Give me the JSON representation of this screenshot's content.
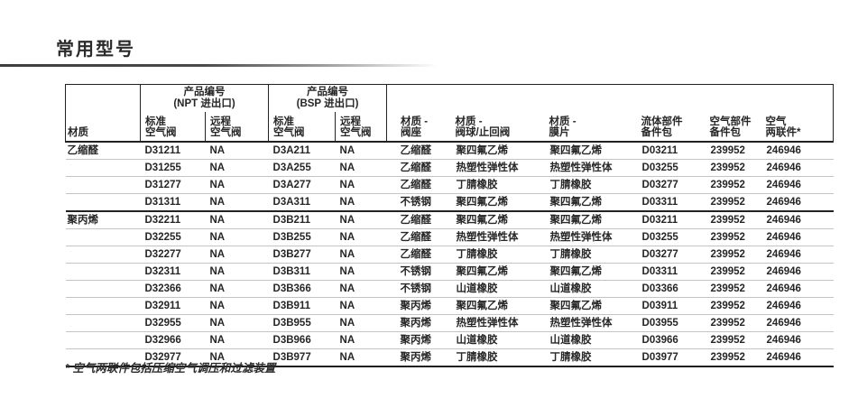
{
  "page": {
    "title": "常用型号",
    "footnote": "* 空气两联件包括压缩空气调压和过滤装置"
  },
  "colors": {
    "border_dark": "#222222",
    "row_divider": "#c4c4c4",
    "text": "#262626"
  },
  "table": {
    "header": {
      "material": "材质",
      "npt_group": "产品编号\n(NPT 进出口)",
      "bsp_group": "产品编号\n(BSP 进出口)",
      "standard_valve": "标准\n空气阀",
      "remote_valve": "远程\n空气阀",
      "seat": "材质 -\n阀座",
      "ball_check": "材质 -\n阀球/止回阀",
      "diaphragm": "材质 -\n膜片",
      "fluid_kit": "流体部件\n备件包",
      "air_kit": "空气部件\n备件包",
      "air_combo": "空气\n两联件*"
    },
    "groups": [
      {
        "material": "乙缩醛",
        "rows": [
          [
            "D31211",
            "NA",
            "D3A211",
            "NA",
            "乙缩醛",
            "聚四氟乙烯",
            "聚四氟乙烯",
            "D03211",
            "239952",
            "246946"
          ],
          [
            "D31255",
            "NA",
            "D3A255",
            "NA",
            "乙缩醛",
            "热塑性弹性体",
            "热塑性弹性体",
            "D03255",
            "239952",
            "246946"
          ],
          [
            "D31277",
            "NA",
            "D3A277",
            "NA",
            "乙缩醛",
            "丁腈橡胶",
            "丁腈橡胶",
            "D03277",
            "239952",
            "246946"
          ],
          [
            "D31311",
            "NA",
            "D3A311",
            "NA",
            "不锈钢",
            "聚四氟乙烯",
            "聚四氟乙烯",
            "D03311",
            "239952",
            "246946"
          ]
        ]
      },
      {
        "material": "聚丙烯",
        "rows": [
          [
            "D32211",
            "NA",
            "D3B211",
            "NA",
            "乙缩醛",
            "聚四氟乙烯",
            "聚四氟乙烯",
            "D03211",
            "239952",
            "246946"
          ],
          [
            "D32255",
            "NA",
            "D3B255",
            "NA",
            "乙缩醛",
            "热塑性弹性体",
            "热塑性弹性体",
            "D03255",
            "239952",
            "246946"
          ],
          [
            "D32277",
            "NA",
            "D3B277",
            "NA",
            "乙缩醛",
            "丁腈橡胶",
            "丁腈橡胶",
            "D03277",
            "239952",
            "246946"
          ],
          [
            "D32311",
            "NA",
            "D3B311",
            "NA",
            "不锈钢",
            "聚四氟乙烯",
            "聚四氟乙烯",
            "D03311",
            "239952",
            "246946"
          ],
          [
            "D32366",
            "NA",
            "D3B366",
            "NA",
            "不锈钢",
            "山道橡胶",
            "山道橡胶",
            "D03366",
            "239952",
            "246946"
          ],
          [
            "D32911",
            "NA",
            "D3B911",
            "NA",
            "聚丙烯",
            "聚四氟乙烯",
            "聚四氟乙烯",
            "D03911",
            "239952",
            "246946"
          ],
          [
            "D32955",
            "NA",
            "D3B955",
            "NA",
            "聚丙烯",
            "热塑性弹性体",
            "热塑性弹性体",
            "D03955",
            "239952",
            "246946"
          ],
          [
            "D32966",
            "NA",
            "D3B966",
            "NA",
            "聚丙烯",
            "山道橡胶",
            "山道橡胶",
            "D03966",
            "239952",
            "246946"
          ],
          [
            "D32977",
            "NA",
            "D3B977",
            "NA",
            "聚丙烯",
            "丁腈橡胶",
            "丁腈橡胶",
            "D03977",
            "239952",
            "246946"
          ]
        ]
      }
    ]
  }
}
